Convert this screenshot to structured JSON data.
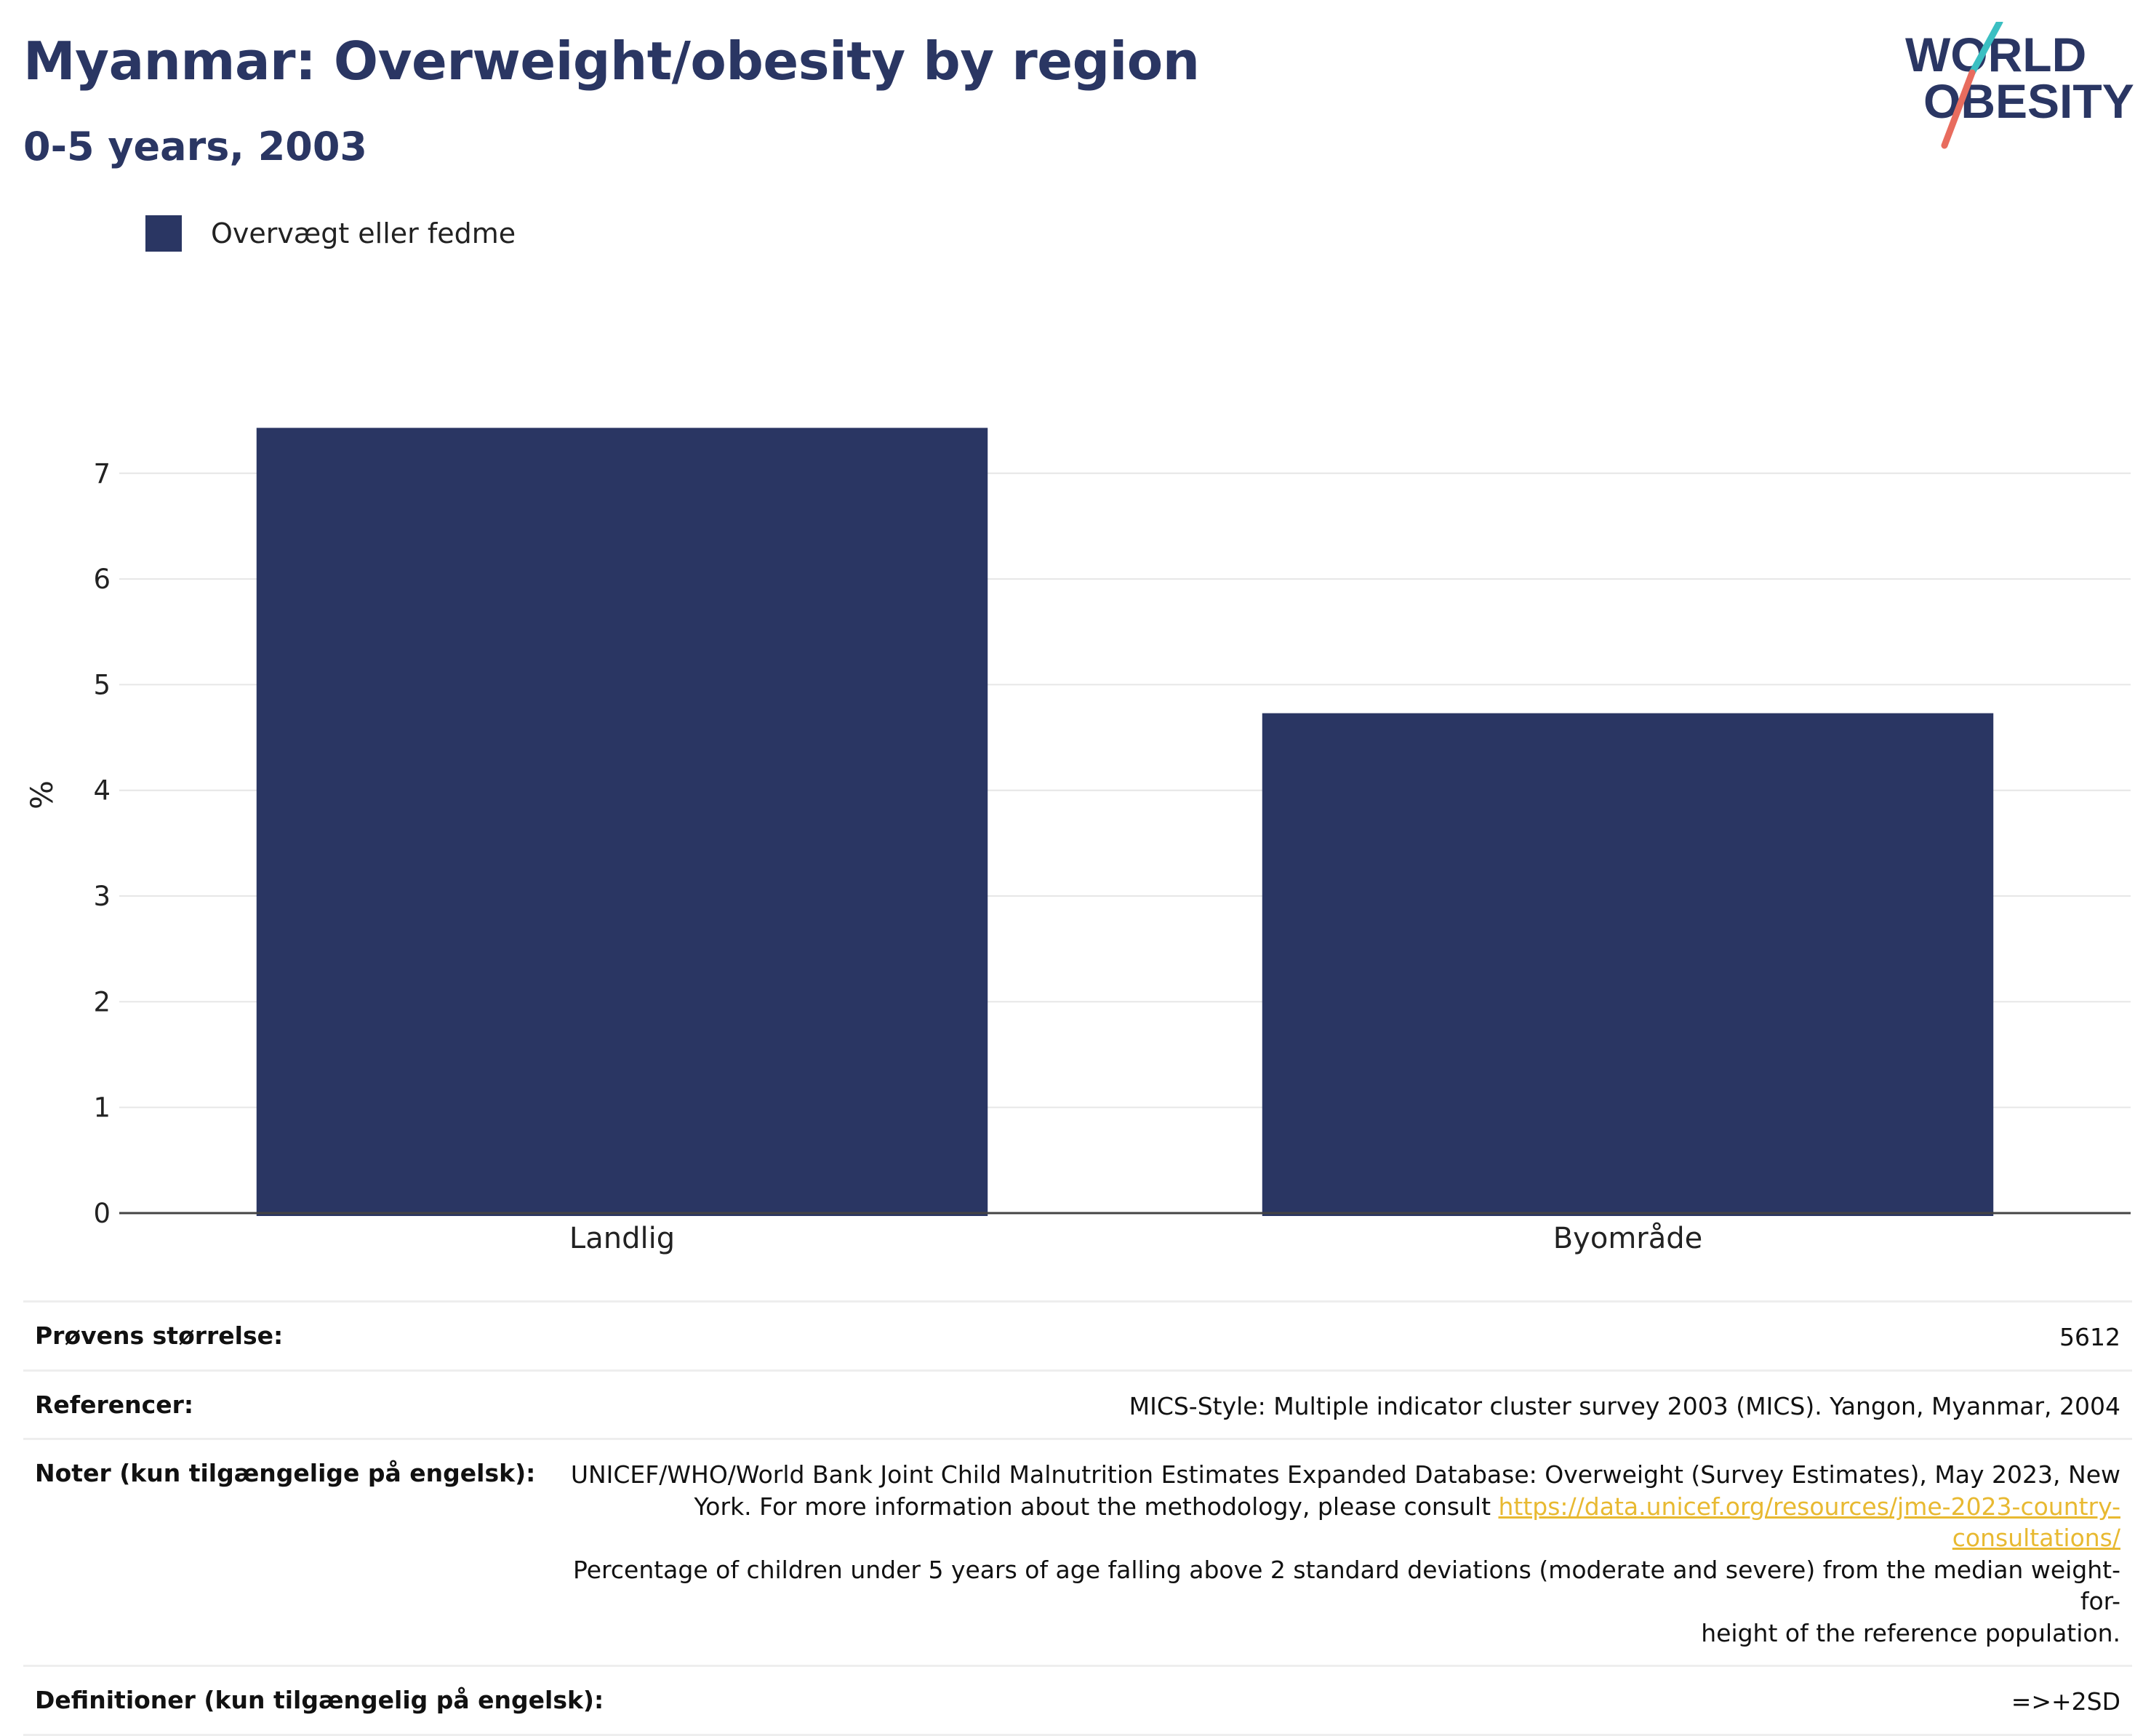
{
  "header": {
    "title": "Myanmar: Overweight/obesity by region",
    "subtitle": "0-5 years, 2003"
  },
  "logo": {
    "line1": "WORLD",
    "line2": "OBESITY",
    "text_color": "#2a3663",
    "slash_colors": [
      "#3bbfc2",
      "#e86c5e"
    ]
  },
  "legend": {
    "label": "Overvægt eller fedme",
    "color": "#2a3663"
  },
  "chart_data": {
    "type": "bar",
    "categories": [
      "Landlig",
      "Byområde"
    ],
    "series": [
      {
        "name": "Overvægt eller fedme",
        "values": [
          7.43,
          4.73
        ],
        "color": "#2a3663"
      }
    ],
    "xlabel": "",
    "ylabel": "%",
    "ylim": [
      0,
      7.9
    ],
    "yticks": [
      0,
      1,
      2,
      3,
      4,
      5,
      6,
      7
    ],
    "grid": true
  },
  "info": {
    "sample": {
      "label": "Prøvens størrelse:",
      "value": "5612"
    },
    "references": {
      "label": "Referencer:",
      "value": "MICS-Style: Multiple indicator cluster survey 2003 (MICS). Yangon, Myanmar, 2004"
    },
    "notes": {
      "label": "Noter (kun tilgængelige på engelsk):",
      "line1": "UNICEF/WHO/World Bank Joint Child Malnutrition Estimates Expanded Database: Overweight (Survey Estimates), May 2023, New",
      "line2_prefix": "York. For more information about the methodology, please consult ",
      "link": "https://data.unicef.org/resources/jme-2023-country-consultations/",
      "line3": "Percentage of children under 5 years of age falling above 2 standard deviations (moderate and severe) from the median weight-for-",
      "line4": "height of the reference population."
    },
    "definitions": {
      "label": "Definitioner (kun tilgængelig på engelsk):",
      "value": "=>+2SD"
    }
  }
}
